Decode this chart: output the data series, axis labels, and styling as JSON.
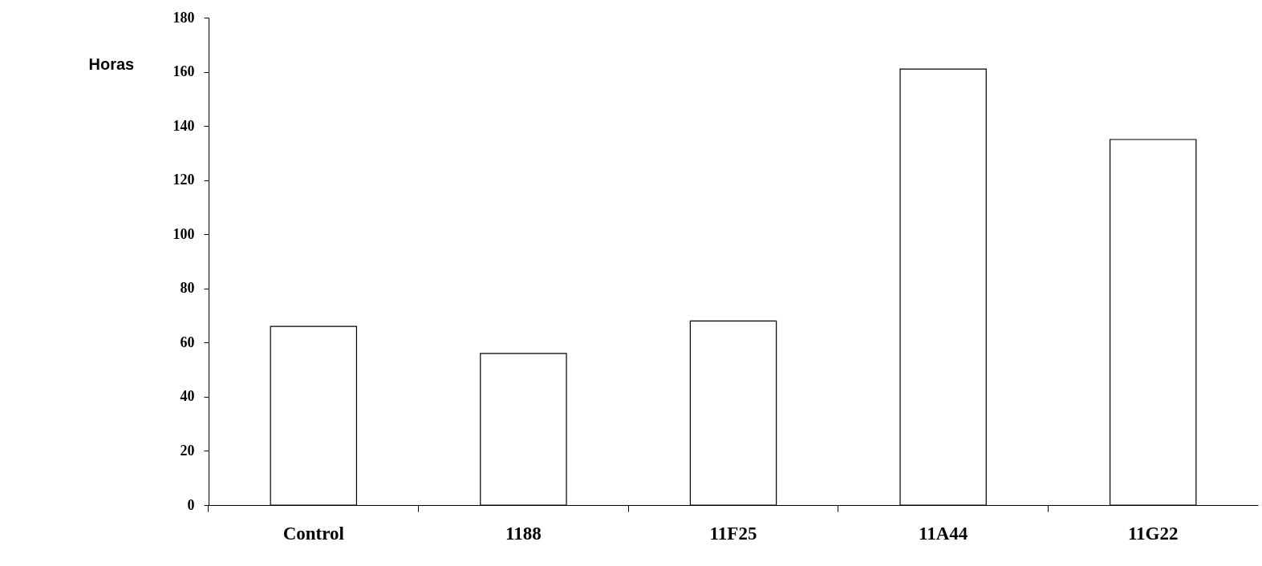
{
  "chart_data": {
    "type": "bar",
    "ylabel": "Horas",
    "categories": [
      "Control",
      "1188",
      "11F25",
      "11A44",
      "11G22"
    ],
    "values": [
      66,
      56,
      68,
      161,
      135
    ],
    "color": "#ffffff",
    "ylim": [
      0,
      180
    ],
    "yticks": [
      0,
      20,
      40,
      60,
      80,
      100,
      120,
      140,
      160,
      180
    ],
    "grid": false
  }
}
